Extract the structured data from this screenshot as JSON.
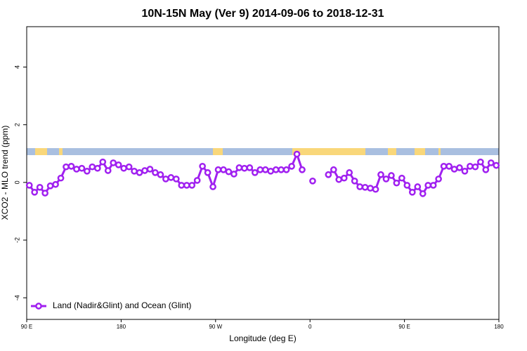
{
  "chart_data": {
    "type": "line",
    "title": "10N-15N May (Ver 9)   2014-09-06 to 2018-12-31",
    "xlabel": "Longitude (deg E)",
    "ylabel": "XCO2 - MLO trend (ppm)",
    "xlim": [
      90,
      540
    ],
    "ylim": [
      -4.75,
      5.4
    ],
    "xticks": [
      {
        "value": 90,
        "label": "90 E"
      },
      180,
      {
        "value": 270,
        "label": "90 W"
      },
      {
        "value": 360,
        "label": "0"
      },
      {
        "value": 450,
        "label": "90 E"
      },
      {
        "value": 540,
        "label": "180"
      }
    ],
    "yticks": [
      -4,
      -2,
      0,
      2,
      4
    ],
    "legend": "bottomleft",
    "x": [
      92.5,
      97.5,
      102.5,
      107.5,
      112.5,
      117.5,
      122.5,
      127.5,
      132.5,
      137.5,
      142.5,
      147.5,
      152.5,
      157.5,
      162.5,
      167.5,
      172.5,
      177.5,
      182.5,
      187.5,
      192.5,
      197.5,
      202.5,
      207.5,
      212.5,
      217.5,
      222.5,
      227.5,
      232.5,
      237.5,
      242.5,
      247.5,
      252.5,
      257.5,
      262.5,
      267.5,
      272.5,
      277.5,
      282.5,
      287.5,
      292.5,
      297.5,
      302.5,
      307.5,
      312.5,
      317.5,
      322.5,
      327.5,
      332.5,
      337.5,
      342.5,
      347.5,
      352.5,
      357.5,
      362.5,
      367.5,
      372.5,
      377.5,
      382.5,
      387.5,
      392.5,
      397.5,
      402.5,
      407.5,
      412.5,
      417.5,
      422.5,
      427.5,
      432.5,
      437.5,
      442.5,
      447.5,
      452.5,
      457.5,
      462.5,
      467.5,
      472.5,
      477.5,
      482.5,
      487.5,
      492.5,
      497.5,
      502.5,
      507.5,
      512.5,
      517.5,
      522.5,
      527.5,
      532.5,
      537.5
    ],
    "series": [
      {
        "name": "Land (Nadir&Glint) and Ocean (Glint)",
        "color": "#a020f0",
        "values": [
          -0.1,
          -0.34,
          -0.17,
          -0.37,
          -0.12,
          -0.07,
          0.15,
          0.54,
          0.56,
          0.46,
          0.49,
          0.39,
          0.54,
          0.49,
          0.71,
          0.41,
          0.68,
          0.61,
          0.49,
          0.54,
          0.39,
          0.34,
          0.41,
          0.46,
          0.34,
          0.27,
          0.12,
          0.17,
          0.12,
          -0.1,
          -0.1,
          -0.1,
          0.07,
          0.56,
          0.34,
          -0.15,
          0.44,
          0.44,
          0.37,
          0.29,
          0.51,
          0.49,
          0.51,
          0.34,
          0.44,
          0.44,
          0.39,
          0.44,
          0.44,
          0.44,
          0.56,
          0.98,
          0.44,
          null,
          0.05,
          null,
          null,
          0.27,
          0.44,
          0.1,
          0.15,
          0.34,
          0.05,
          -0.15,
          -0.17,
          -0.2,
          -0.24,
          0.27,
          0.12,
          0.24,
          -0.02,
          0.15,
          -0.1,
          -0.34,
          -0.15,
          -0.39,
          -0.1,
          -0.1,
          0.12,
          0.56,
          0.56,
          0.46,
          0.51,
          0.39,
          0.56,
          0.54,
          0.71,
          0.44,
          0.68,
          0.59
        ]
      }
    ]
  }
}
